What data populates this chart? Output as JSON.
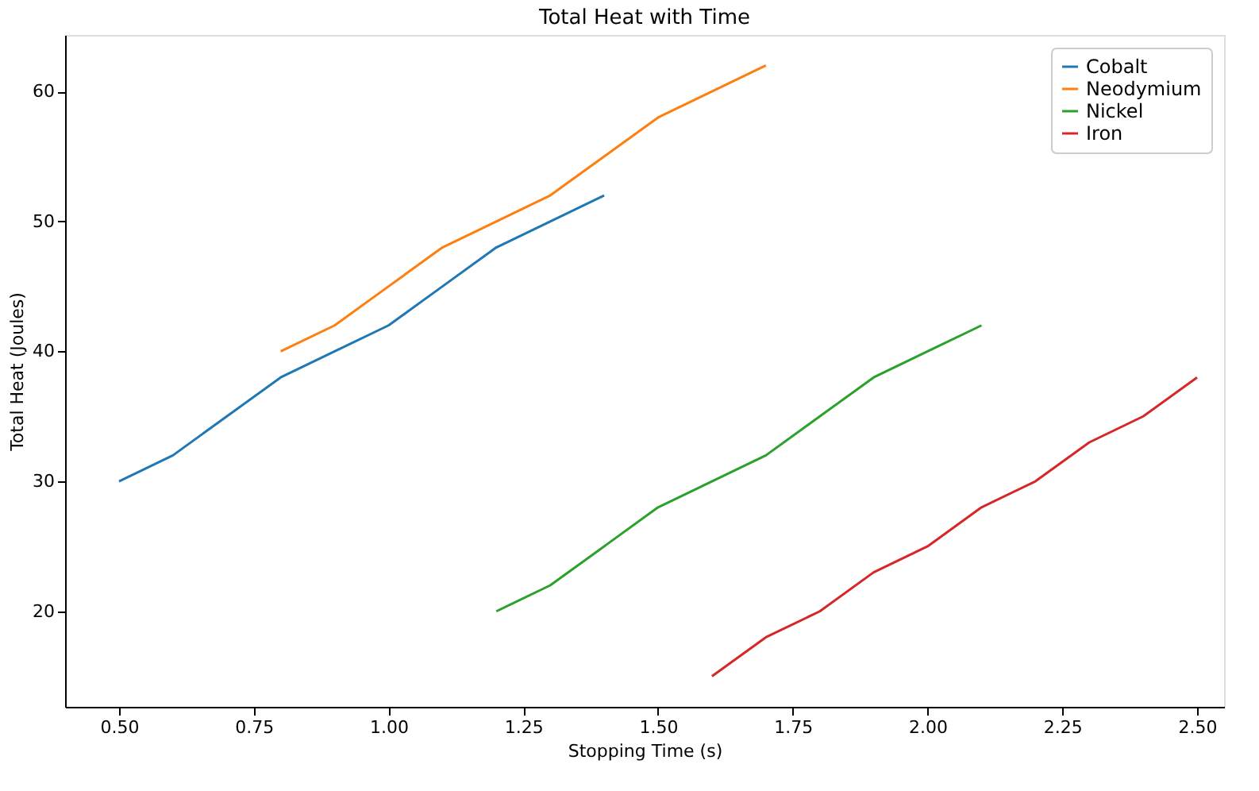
{
  "chart_data": {
    "type": "line",
    "title": "Total Heat with Time",
    "xlabel": "Stopping Time (s)",
    "ylabel": "Total Heat (Joules)",
    "xlim": [
      0.4,
      2.55
    ],
    "ylim": [
      12.65,
      64.35
    ],
    "xticks": [
      {
        "value": 0.5,
        "label": "0.50"
      },
      {
        "value": 0.75,
        "label": "0.75"
      },
      {
        "value": 1.0,
        "label": "1.00"
      },
      {
        "value": 1.25,
        "label": "1.25"
      },
      {
        "value": 1.5,
        "label": "1.50"
      },
      {
        "value": 1.75,
        "label": "1.75"
      },
      {
        "value": 2.0,
        "label": "2.00"
      },
      {
        "value": 2.25,
        "label": "2.25"
      },
      {
        "value": 2.5,
        "label": "2.50"
      }
    ],
    "yticks": [
      20,
      30,
      40,
      50,
      60
    ],
    "grid": false,
    "legend": "top right",
    "marker": "none",
    "line_style": "solid",
    "series": [
      {
        "name": "Cobalt",
        "color": "#1f77b4",
        "x": [
          0.5,
          0.6,
          0.7,
          0.8,
          0.9,
          1.0,
          1.1,
          1.2,
          1.3,
          1.4
        ],
        "values": [
          30,
          32,
          35,
          38,
          40,
          42,
          45,
          48,
          50,
          52
        ]
      },
      {
        "name": "Neodymium",
        "color": "#ff7f0e",
        "x": [
          0.8,
          0.9,
          1.0,
          1.1,
          1.2,
          1.3,
          1.4,
          1.5,
          1.6,
          1.7
        ],
        "values": [
          40,
          42,
          45,
          48,
          50,
          52,
          55,
          58,
          60,
          62
        ]
      },
      {
        "name": "Nickel",
        "color": "#2ca02c",
        "x": [
          1.2,
          1.3,
          1.4,
          1.5,
          1.6,
          1.7,
          1.8,
          1.9,
          2.0,
          2.1
        ],
        "values": [
          20,
          22,
          25,
          28,
          30,
          32,
          35,
          38,
          40,
          42
        ]
      },
      {
        "name": "Iron",
        "color": "#d62728",
        "x": [
          1.6,
          1.7,
          1.8,
          1.9,
          2.0,
          2.1,
          2.2,
          2.3,
          2.4,
          2.5
        ],
        "values": [
          15,
          18,
          20,
          23,
          25,
          28,
          30,
          33,
          35,
          38
        ]
      }
    ]
  }
}
